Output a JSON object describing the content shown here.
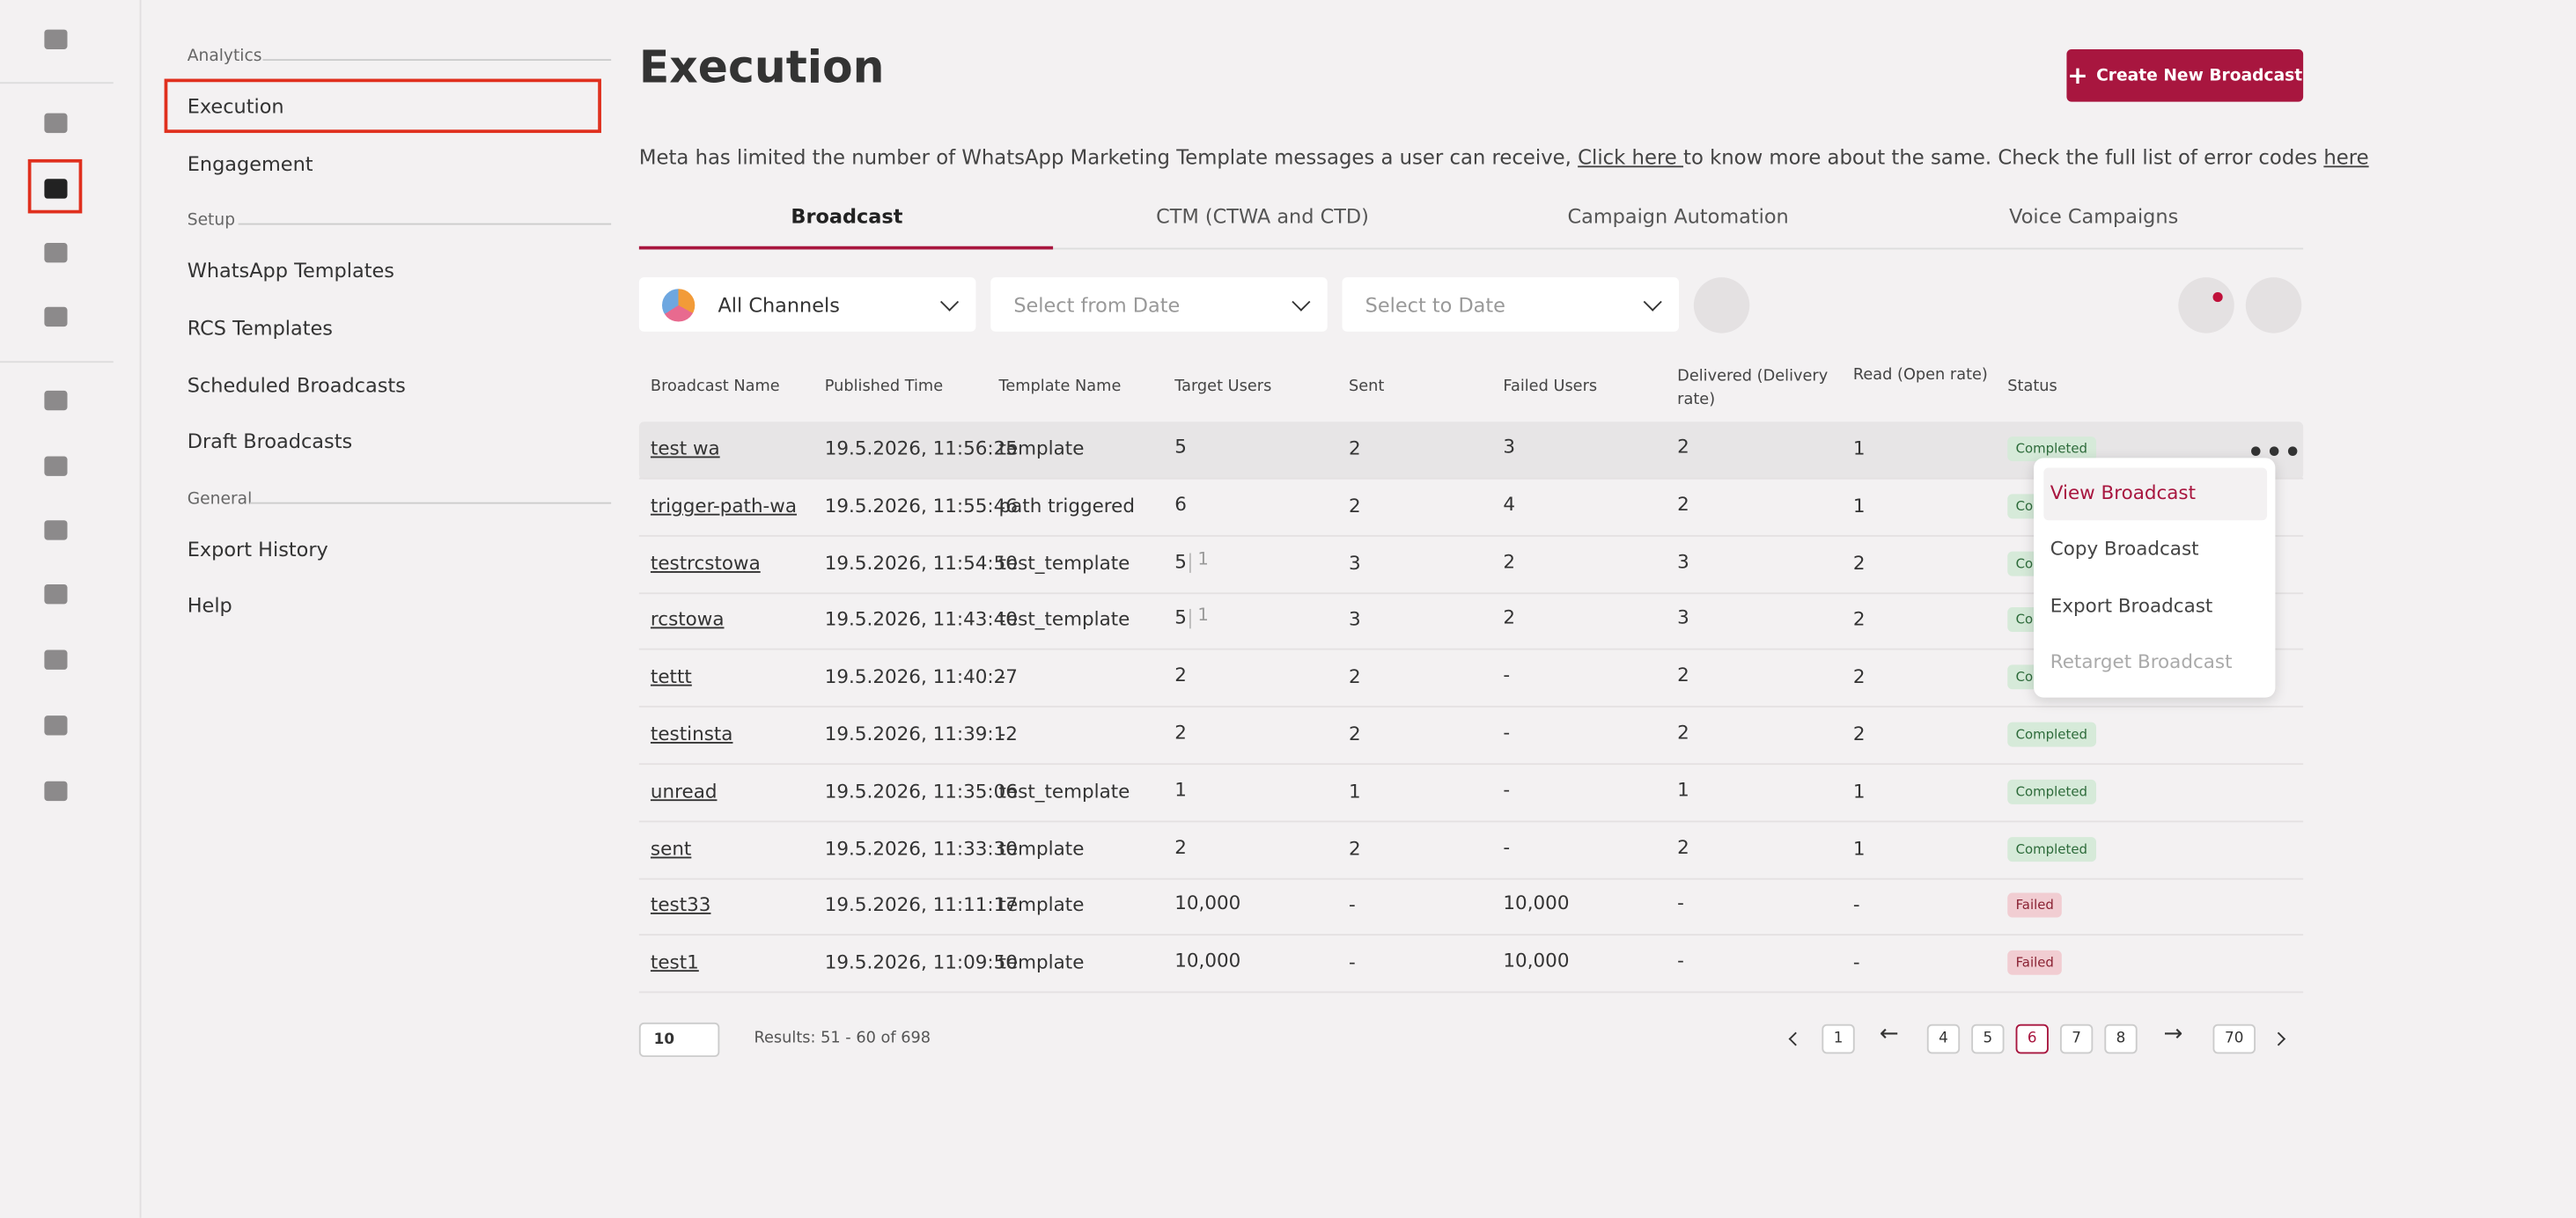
{
  "sidebar": {
    "sections": [
      {
        "label": "Analytics",
        "items": [
          "Execution",
          "Engagement"
        ]
      },
      {
        "label": "Setup",
        "items": [
          "WhatsApp Templates",
          "RCS Templates",
          "Scheduled Broadcasts",
          "Draft Broadcasts"
        ]
      },
      {
        "label": "General",
        "items": [
          "Export History",
          "Help"
        ]
      }
    ]
  },
  "header": {
    "title": "Execution",
    "button": "Create New Broadcast"
  },
  "notice": {
    "text": "Meta has limited the number of WhatsApp Marketing Template messages a user can receive,",
    "link1": "Click here",
    "middle": "to know more about the same. Check the full list of error codes",
    "link2": "here"
  },
  "tabs": [
    "Broadcast",
    "CTM (CTWA and CTD)",
    "Campaign Automation",
    "Voice Campaigns"
  ],
  "filters": {
    "channel": "All Channels",
    "from": "Select from Date",
    "to": "Select to Date"
  },
  "table": {
    "headers": [
      "Broadcast Name",
      "Published Time",
      "Template Name",
      "Target Users",
      "Sent",
      "Failed Users",
      "Delivered (Delivery rate)",
      "Read (Open rate)",
      "Status"
    ],
    "rows": [
      [
        "test wa",
        "19.5.2026, 11:56:25",
        "template",
        "5",
        "2",
        "3",
        "2",
        "1",
        "Completed"
      ],
      [
        "trigger-path-wa",
        "19.5.2026, 11:55:46",
        "path triggered",
        "6",
        "2",
        "4",
        "2",
        "1",
        "Completed"
      ],
      [
        "testrcstowa",
        "19.5.2026, 11:54:50",
        "test_template",
        "5",
        "3",
        "2",
        "3",
        "2",
        "Completed"
      ],
      [
        "rcstowa",
        "19.5.2026, 11:43:40",
        "test_template",
        "5",
        "3",
        "2",
        "3",
        "2",
        "Completed"
      ],
      [
        "tettt",
        "19.5.2026, 11:40:27",
        "-",
        "2",
        "2",
        "-",
        "2",
        "2",
        "Completed"
      ],
      [
        "testinsta",
        "19.5.2026, 11:39:12",
        "-",
        "2",
        "2",
        "-",
        "2",
        "2",
        "Completed"
      ],
      [
        "unread",
        "19.5.2026, 11:35:06",
        "test_template",
        "1",
        "1",
        "-",
        "1",
        "1",
        "Completed"
      ],
      [
        "sent",
        "19.5.2026, 11:33:30",
        "template",
        "2",
        "2",
        "-",
        "2",
        "1",
        "Completed"
      ],
      [
        "test33",
        "19.5.2026, 11:11:17",
        "template",
        "10,000",
        "-",
        "10,000",
        "-",
        "-",
        "Failed"
      ],
      [
        "test1",
        "19.5.2026, 11:09:50",
        "template",
        "10,000",
        "-",
        "10,000",
        "-",
        "-",
        "Failed"
      ]
    ],
    "target_extra": {
      "2": "1",
      "3": "1"
    }
  },
  "menu": [
    "View Broadcast",
    "Copy Broadcast",
    "Export Broadcast",
    "Retarget Broadcast"
  ],
  "footer": {
    "page_size": "10",
    "results": "Results: 51 - 60 of 698",
    "pages": [
      "1",
      "←",
      "4",
      "5",
      "6",
      "7",
      "8",
      "→",
      "70"
    ],
    "current": "6"
  }
}
